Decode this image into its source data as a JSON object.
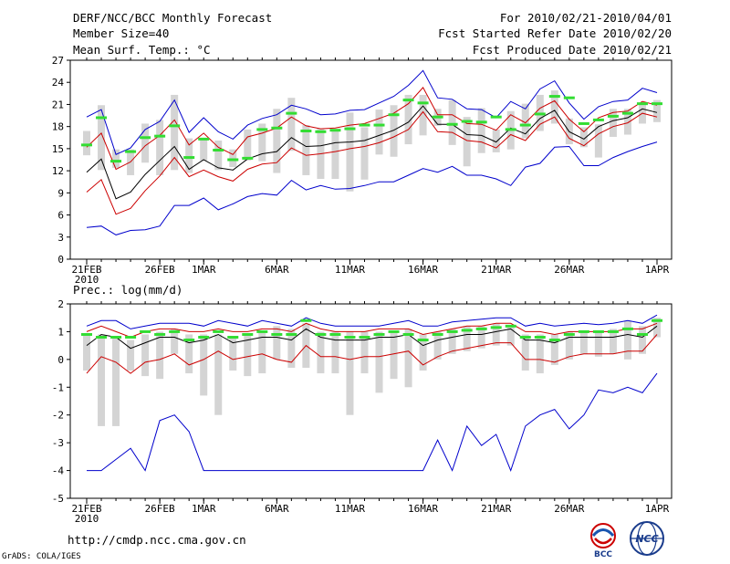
{
  "header": {
    "title": "DERF/NCC/BCC Monthly Forecast",
    "member_size": "Member Size=40",
    "variable": "Mean Surf. Temp.: °C",
    "period": "For 2010/02/21-2010/04/01",
    "refer_date": "Fcst Started Refer Date 2010/02/20",
    "produced_date": "Fcst Produced Date 2010/02/21"
  },
  "footer": {
    "url": "http://cmdp.ncc.cma.gov.cn",
    "credit": "GrADS: COLA/IGES",
    "logo1_text": "BCC",
    "logo2_text": "NCC"
  },
  "colors": {
    "envelope": "#0000cc",
    "spread": "#cc0000",
    "mean": "#000000",
    "ensemble_bar": "#d4d4d4",
    "obs_marker": "#33dd33"
  },
  "chart_data": [
    {
      "type": "line",
      "title": "Mean Surf. Temp.: °C",
      "ylabel": "°C",
      "ylim": [
        0,
        27
      ],
      "yticks": [
        0,
        3,
        6,
        9,
        12,
        15,
        18,
        21,
        24,
        27
      ],
      "xtick_labels": [
        {
          "day": 0,
          "label": "21FEB",
          "sub": "2010"
        },
        {
          "day": 5,
          "label": "26FEB"
        },
        {
          "day": 8,
          "label": "1MAR"
        },
        {
          "day": 13,
          "label": "6MAR"
        },
        {
          "day": 18,
          "label": "11MAR"
        },
        {
          "day": 23,
          "label": "16MAR"
        },
        {
          "day": 28,
          "label": "21MAR"
        },
        {
          "day": 33,
          "label": "26MAR"
        },
        {
          "day": 39,
          "label": "1APR"
        }
      ],
      "series": [
        {
          "name": "max",
          "color": "#0000cc",
          "values": [
            19.3,
            20.3,
            14.2,
            15.1,
            17.6,
            18.7,
            21.6,
            17.2,
            19.2,
            17.3,
            16.3,
            18.2,
            19.1,
            19.6,
            20.9,
            20.4,
            19.6,
            19.7,
            20.2,
            20.3,
            21.2,
            22.1,
            23.6,
            25.6,
            21.9,
            21.7,
            20.4,
            20.3,
            19.2,
            21.4,
            20.4,
            23.1,
            24.2,
            21.2,
            19.0,
            20.7,
            21.4,
            21.6,
            23.2,
            22.6
          ]
        },
        {
          "name": "upper",
          "color": "#cc0000",
          "values": [
            15.2,
            17.1,
            12.2,
            13.2,
            15.4,
            16.8,
            18.9,
            15.5,
            17.1,
            15.2,
            14.2,
            16.6,
            17.1,
            17.8,
            19.3,
            18.1,
            17.7,
            17.8,
            18.2,
            18.4,
            19.1,
            19.8,
            21.1,
            23.3,
            19.6,
            19.6,
            18.4,
            18.3,
            17.5,
            19.6,
            18.5,
            20.5,
            21.5,
            19.0,
            17.3,
            19.2,
            19.9,
            20.1,
            21.4,
            20.9
          ]
        },
        {
          "name": "mean",
          "color": "#000000",
          "values": [
            11.8,
            13.6,
            8.2,
            9.1,
            11.5,
            13.4,
            15.3,
            12.2,
            13.5,
            12.4,
            12.1,
            13.6,
            14.3,
            14.6,
            16.5,
            15.3,
            15.4,
            15.8,
            15.9,
            16.1,
            16.8,
            17.5,
            18.6,
            20.8,
            18.3,
            18.3,
            16.9,
            16.8,
            15.9,
            17.8,
            17.0,
            19.1,
            20.2,
            17.3,
            16.3,
            18.0,
            18.8,
            19.2,
            20.4,
            19.9
          ]
        },
        {
          "name": "lower",
          "color": "#cc0000",
          "values": [
            9.1,
            10.8,
            6.1,
            6.9,
            9.3,
            11.3,
            13.8,
            11.2,
            12.1,
            11.2,
            10.6,
            12.2,
            12.9,
            13.1,
            15.1,
            14.1,
            14.3,
            14.6,
            15.0,
            15.3,
            15.8,
            16.6,
            17.6,
            20.0,
            17.3,
            17.2,
            16.1,
            15.9,
            15.1,
            16.9,
            16.1,
            18.3,
            19.3,
            16.4,
            15.4,
            17.0,
            18.0,
            18.5,
            19.8,
            19.3
          ]
        },
        {
          "name": "min",
          "color": "#0000cc",
          "values": [
            4.3,
            4.5,
            3.3,
            3.9,
            4.0,
            4.5,
            7.3,
            7.3,
            8.3,
            6.7,
            7.5,
            8.5,
            8.9,
            8.7,
            10.7,
            9.4,
            10.0,
            9.5,
            9.6,
            10.0,
            10.5,
            10.5,
            11.4,
            12.3,
            11.8,
            12.6,
            11.4,
            11.4,
            10.9,
            10.0,
            12.5,
            13.0,
            15.2,
            15.3,
            12.7,
            12.7,
            13.8,
            14.6,
            15.3,
            15.9
          ]
        }
      ],
      "bars": [
        [
          14.1,
          17.4
        ],
        [
          12.1,
          20.9
        ],
        [
          12.4,
          14.9
        ],
        [
          11.4,
          14.9
        ],
        [
          13.1,
          18.4
        ],
        [
          11.4,
          18.9
        ],
        [
          12.1,
          22.3
        ],
        [
          11.7,
          16.4
        ],
        [
          13.4,
          16.4
        ],
        [
          12.1,
          16.1
        ],
        [
          12.5,
          14.9
        ],
        [
          13.4,
          17.6
        ],
        [
          13.3,
          18.4
        ],
        [
          11.7,
          20.4
        ],
        [
          14.7,
          21.9
        ],
        [
          11.4,
          18.2
        ],
        [
          10.9,
          17.7
        ],
        [
          10.9,
          17.4
        ],
        [
          9.2,
          19.9
        ],
        [
          10.8,
          17.9
        ],
        [
          14.2,
          20.3
        ],
        [
          13.9,
          20.9
        ],
        [
          15.6,
          22.3
        ],
        [
          16.8,
          22.3
        ],
        [
          18.1,
          20.4
        ],
        [
          15.5,
          21.6
        ],
        [
          12.6,
          19.3
        ],
        [
          14.4,
          20.5
        ],
        [
          14.5,
          17.6
        ],
        [
          14.9,
          20.1
        ],
        [
          16.4,
          21.1
        ],
        [
          17.4,
          22.3
        ],
        [
          18.4,
          22.9
        ],
        [
          15.6,
          19.1
        ],
        [
          15.2,
          17.9
        ],
        [
          13.8,
          18.3
        ],
        [
          16.6,
          20.4
        ],
        [
          16.9,
          20.4
        ],
        [
          18.4,
          21.1
        ],
        [
          18.6,
          21.6
        ]
      ],
      "obs": [
        15.5,
        19.2,
        13.3,
        14.6,
        16.5,
        16.7,
        18.1,
        13.8,
        16.3,
        14.8,
        13.5,
        13.7,
        17.6,
        17.8,
        19.8,
        17.4,
        17.3,
        17.5,
        17.7,
        18.2,
        18.2,
        19.6,
        21.6,
        21.2,
        19.3,
        18.3,
        18.7,
        18.6,
        19.3,
        17.6,
        18.2,
        19.7,
        22.1,
        21.9,
        18.4,
        18.9,
        19.4,
        19.8,
        21.1,
        21.1
      ]
    },
    {
      "type": "line",
      "title": "Prec.: log(mm/d)",
      "ylabel": "log(mm/d)",
      "ylim": [
        -5,
        2
      ],
      "yticks": [
        -5,
        -4,
        -3,
        -2,
        -1,
        0,
        1,
        2
      ],
      "xtick_labels": [
        {
          "day": 0,
          "label": "21FEB",
          "sub": "2010"
        },
        {
          "day": 5,
          "label": "26FEB"
        },
        {
          "day": 8,
          "label": "1MAR"
        },
        {
          "day": 13,
          "label": "6MAR"
        },
        {
          "day": 18,
          "label": "11MAR"
        },
        {
          "day": 23,
          "label": "16MAR"
        },
        {
          "day": 28,
          "label": "21MAR"
        },
        {
          "day": 33,
          "label": "26MAR"
        },
        {
          "day": 39,
          "label": "1APR"
        }
      ],
      "series": [
        {
          "name": "max",
          "color": "#0000cc",
          "values": [
            1.2,
            1.4,
            1.4,
            1.1,
            1.2,
            1.3,
            1.3,
            1.3,
            1.2,
            1.4,
            1.3,
            1.2,
            1.4,
            1.3,
            1.2,
            1.5,
            1.3,
            1.2,
            1.2,
            1.2,
            1.2,
            1.3,
            1.4,
            1.2,
            1.2,
            1.35,
            1.4,
            1.45,
            1.5,
            1.5,
            1.2,
            1.3,
            1.2,
            1.25,
            1.3,
            1.25,
            1.3,
            1.4,
            1.3,
            1.6
          ]
        },
        {
          "name": "upper",
          "color": "#cc0000",
          "values": [
            1.0,
            1.2,
            1.0,
            0.8,
            1.0,
            1.1,
            1.1,
            1.0,
            1.0,
            1.1,
            1.0,
            1.0,
            1.1,
            1.1,
            1.0,
            1.3,
            1.1,
            1.0,
            1.0,
            1.0,
            1.1,
            1.1,
            1.1,
            0.9,
            1.0,
            1.1,
            1.2,
            1.2,
            1.3,
            1.3,
            1.0,
            1.0,
            0.9,
            1.0,
            1.0,
            1.0,
            1.0,
            1.1,
            1.1,
            1.3
          ]
        },
        {
          "name": "mean",
          "color": "#000000",
          "values": [
            0.5,
            0.9,
            0.8,
            0.4,
            0.6,
            0.8,
            0.8,
            0.6,
            0.7,
            0.9,
            0.6,
            0.7,
            0.8,
            0.8,
            0.7,
            1.1,
            0.8,
            0.7,
            0.7,
            0.7,
            0.8,
            0.8,
            0.9,
            0.5,
            0.7,
            0.8,
            0.9,
            0.9,
            1.0,
            1.1,
            0.7,
            0.7,
            0.6,
            0.8,
            0.8,
            0.8,
            0.8,
            0.9,
            0.8,
            1.2
          ]
        },
        {
          "name": "lower",
          "color": "#cc0000",
          "values": [
            -0.5,
            0.1,
            -0.1,
            -0.5,
            -0.1,
            0.0,
            0.2,
            -0.2,
            0.0,
            0.3,
            0.0,
            0.1,
            0.2,
            0.0,
            -0.1,
            0.5,
            0.1,
            0.1,
            0.0,
            0.1,
            0.1,
            0.2,
            0.3,
            -0.2,
            0.1,
            0.3,
            0.4,
            0.5,
            0.6,
            0.6,
            0.0,
            0.0,
            -0.1,
            0.1,
            0.2,
            0.2,
            0.2,
            0.3,
            0.3,
            0.9
          ]
        },
        {
          "name": "min",
          "color": "#0000cc",
          "values": [
            -4.0,
            -4.0,
            -3.6,
            -3.2,
            -4.0,
            -2.2,
            -2.0,
            -2.6,
            -4.0,
            -4.0,
            -4.0,
            -4.0,
            -4.0,
            -4.0,
            -4.0,
            -4.0,
            -4.0,
            -4.0,
            -4.0,
            -4.0,
            -4.0,
            -4.0,
            -4.0,
            -4.0,
            -2.9,
            -4.0,
            -2.4,
            -3.1,
            -2.7,
            -4.0,
            -2.4,
            -2.0,
            -1.8,
            -2.5,
            -2.0,
            -1.1,
            -1.2,
            -1.0,
            -1.2,
            -0.5
          ]
        }
      ],
      "bars": [
        [
          -0.4,
          0.9
        ],
        [
          -2.4,
          0.9
        ],
        [
          -2.4,
          0.8
        ],
        [
          -0.4,
          0.7
        ],
        [
          -0.6,
          0.9
        ],
        [
          -0.7,
          1.0
        ],
        [
          0.2,
          1.1
        ],
        [
          -0.5,
          0.9
        ],
        [
          -1.3,
          0.9
        ],
        [
          -2.0,
          0.9
        ],
        [
          -0.4,
          0.8
        ],
        [
          -0.6,
          0.9
        ],
        [
          -0.5,
          1.0
        ],
        [
          0.0,
          1.2
        ],
        [
          -0.3,
          1.1
        ],
        [
          -0.3,
          1.3
        ],
        [
          -0.5,
          1.0
        ],
        [
          -0.5,
          1.0
        ],
        [
          -2.0,
          1.0
        ],
        [
          -0.5,
          1.0
        ],
        [
          -1.2,
          1.0
        ],
        [
          -0.7,
          1.0
        ],
        [
          -1.0,
          1.1
        ],
        [
          -0.4,
          0.9
        ],
        [
          0.0,
          1.0
        ],
        [
          0.2,
          1.1
        ],
        [
          0.3,
          1.2
        ],
        [
          0.4,
          1.2
        ],
        [
          0.5,
          1.3
        ],
        [
          0.5,
          1.2
        ],
        [
          -0.4,
          0.9
        ],
        [
          -0.5,
          0.9
        ],
        [
          -0.2,
          0.9
        ],
        [
          0.0,
          1.0
        ],
        [
          0.2,
          1.0
        ],
        [
          0.1,
          1.0
        ],
        [
          0.2,
          1.1
        ],
        [
          0.0,
          1.4
        ],
        [
          0.2,
          1.2
        ],
        [
          0.8,
          1.5
        ]
      ],
      "obs": [
        0.9,
        0.8,
        0.8,
        0.8,
        1.0,
        0.9,
        1.0,
        0.7,
        0.8,
        1.0,
        0.8,
        0.9,
        1.0,
        0.9,
        0.9,
        1.4,
        0.9,
        0.9,
        0.8,
        0.8,
        0.9,
        1.0,
        0.9,
        0.7,
        0.9,
        1.0,
        1.05,
        1.1,
        1.15,
        1.2,
        0.8,
        0.8,
        0.7,
        0.9,
        1.0,
        1.0,
        1.0,
        1.1,
        0.9,
        1.4
      ]
    }
  ]
}
